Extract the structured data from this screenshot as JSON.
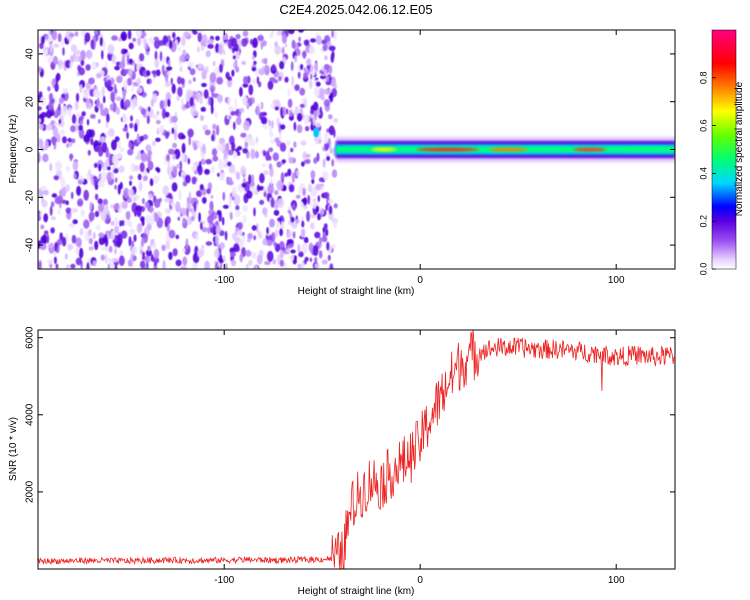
{
  "title": "C2E4.2025.042.06.12.E05",
  "chart_data": [
    {
      "type": "heatmap",
      "xlabel": "Height of straight line (km)",
      "ylabel": "Frequency (Hz)",
      "xlim": [
        -195,
        130
      ],
      "ylim": [
        -50,
        50
      ],
      "x_ticks": [
        -100,
        0,
        100
      ],
      "y_ticks": [
        -40,
        -20,
        0,
        20,
        40
      ],
      "colorbar": {
        "label": "Normalized spectral amplitude",
        "range": [
          0,
          1
        ],
        "ticks": [
          0.0,
          0.2,
          0.4,
          0.6,
          0.8
        ],
        "tick_labels": [
          "0.0",
          "0.2",
          "0.4",
          "0.6",
          "0.8"
        ],
        "colormap": [
          "#ffffff",
          "#e6d0ff",
          "#9a4cf0",
          "#5a00e0",
          "#0000ff",
          "#00d8ff",
          "#00ff70",
          "#66ff00",
          "#ffff00",
          "#ff7f00",
          "#ff0000",
          "#ff0080"
        ]
      },
      "noise_region_x": [
        -195,
        -43
      ],
      "signal_band": {
        "x_start": -43,
        "x_end": 130,
        "freq_center": 0,
        "half_width_hz": 3
      }
    },
    {
      "type": "line",
      "xlabel": "Height of straight line (km)",
      "ylabel": "SNR (10 * v/v)",
      "xlim": [
        -195,
        130
      ],
      "ylim": [
        0,
        6200
      ],
      "x_ticks": [
        -100,
        0,
        100
      ],
      "y_ticks": [
        2000,
        4000,
        6000
      ],
      "series": [
        {
          "color": "#ee2222",
          "x": [
            -195,
            -170,
            -150,
            -130,
            -110,
            -90,
            -70,
            -50,
            -45,
            -40,
            -35,
            -30,
            -25,
            -20,
            -15,
            -10,
            -5,
            0,
            5,
            10,
            15,
            20,
            25,
            30,
            35,
            40,
            50,
            60,
            70,
            80,
            90,
            100,
            110,
            120,
            130
          ],
          "y": [
            200,
            220,
            210,
            230,
            220,
            240,
            230,
            250,
            280,
            300,
            1600,
            2000,
            2300,
            2200,
            2500,
            2700,
            2900,
            3300,
            3900,
            4400,
            4900,
            5300,
            5500,
            5650,
            5700,
            5750,
            5750,
            5700,
            5700,
            5650,
            5600,
            5500,
            5550,
            5500,
            5550
          ]
        }
      ]
    }
  ]
}
